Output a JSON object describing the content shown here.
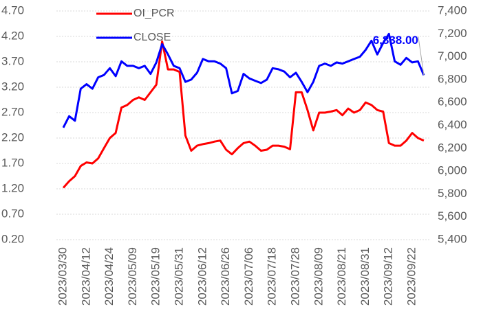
{
  "chart_data": {
    "type": "line",
    "categories": [
      "2023/03/30",
      null,
      null,
      null,
      "2023/04/12",
      null,
      null,
      null,
      "2023/04/24",
      null,
      null,
      null,
      "2023/05/09",
      null,
      null,
      null,
      "2023/05/19",
      null,
      null,
      null,
      "2023/05/31",
      null,
      null,
      null,
      "2023/06/12",
      null,
      null,
      null,
      "2023/06/26",
      null,
      null,
      null,
      "2023/07/06",
      null,
      null,
      null,
      "2023/07/18",
      null,
      null,
      null,
      "2023/07/28",
      null,
      null,
      null,
      "2023/08/09",
      null,
      null,
      null,
      "2023/08/21",
      null,
      null,
      null,
      "2023/08/31",
      null,
      null,
      null,
      "2023/09/12",
      null,
      null,
      null,
      "2023/09/22",
      null,
      null
    ],
    "series": [
      {
        "name": "OI_PCR",
        "color": "#ff0000",
        "axis": "y",
        "values": [
          1.22,
          1.35,
          1.45,
          1.65,
          1.72,
          1.7,
          1.8,
          2.0,
          2.2,
          2.3,
          2.8,
          2.85,
          2.95,
          3.0,
          2.95,
          3.1,
          3.25,
          4.1,
          3.55,
          3.55,
          3.5,
          2.25,
          1.95,
          2.05,
          2.08,
          2.1,
          2.13,
          2.15,
          1.97,
          1.88,
          2.0,
          2.1,
          2.13,
          2.05,
          1.95,
          1.97,
          2.05,
          2.05,
          2.03,
          1.98,
          3.1,
          3.1,
          2.75,
          2.35,
          2.7,
          2.7,
          2.72,
          2.75,
          2.65,
          2.78,
          2.7,
          2.75,
          2.9,
          2.85,
          2.75,
          2.72,
          2.1,
          2.05,
          2.05,
          2.15,
          2.3,
          2.2,
          2.15
        ]
      },
      {
        "name": "CLOSE",
        "color": "#0000ff",
        "axis": "y2",
        "values": [
          6380,
          6480,
          6440,
          6720,
          6760,
          6720,
          6820,
          6840,
          6900,
          6830,
          6960,
          6920,
          6920,
          6900,
          6920,
          6850,
          6950,
          7110,
          7020,
          6920,
          6900,
          6780,
          6800,
          6860,
          6980,
          6960,
          6960,
          6940,
          6900,
          6680,
          6700,
          6850,
          6810,
          6790,
          6770,
          6800,
          6900,
          6890,
          6870,
          6820,
          6860,
          6780,
          6690,
          6780,
          6920,
          6940,
          6920,
          6950,
          6940,
          6960,
          6980,
          7000,
          7060,
          7140,
          7020,
          7120,
          7200,
          6960,
          6930,
          6990,
          6950,
          6960,
          6838
        ],
        "value_labels": [
          null,
          null,
          null,
          null,
          null,
          null,
          null,
          null,
          null,
          null,
          null,
          null,
          null,
          null,
          null,
          null,
          null,
          null,
          null,
          null,
          null,
          null,
          null,
          null,
          null,
          null,
          null,
          null,
          null,
          null,
          null,
          null,
          null,
          null,
          null,
          null,
          null,
          null,
          null,
          null,
          null,
          null,
          null,
          null,
          null,
          null,
          null,
          null,
          null,
          null,
          null,
          null,
          null,
          null,
          null,
          null,
          null,
          null,
          null,
          null,
          null,
          null,
          "6,838.00"
        ]
      }
    ],
    "ylim": [
      0.2,
      4.7
    ],
    "yticks": [
      {
        "value": 0.2,
        "label": "0.20"
      },
      {
        "value": 0.7,
        "label": "0.70"
      },
      {
        "value": 1.2,
        "label": "1.20"
      },
      {
        "value": 1.7,
        "label": "1.70"
      },
      {
        "value": 2.2,
        "label": "2.20"
      },
      {
        "value": 2.7,
        "label": "2.70"
      },
      {
        "value": 3.2,
        "label": "3.20"
      },
      {
        "value": 3.7,
        "label": "3.70"
      },
      {
        "value": 4.2,
        "label": "4.20"
      },
      {
        "value": 4.7,
        "label": "4.70"
      }
    ],
    "y2lim": [
      5400,
      7400
    ],
    "y2ticks": [
      {
        "value": 5400,
        "label": "5,400"
      },
      {
        "value": 5600,
        "label": "5,600"
      },
      {
        "value": 5800,
        "label": "5,800"
      },
      {
        "value": 6000,
        "label": "6,000"
      },
      {
        "value": 6200,
        "label": "6,200"
      },
      {
        "value": 6400,
        "label": "6,400"
      },
      {
        "value": 6600,
        "label": "6,600"
      },
      {
        "value": 6800,
        "label": "6,800"
      },
      {
        "value": 7000,
        "label": "7,000"
      },
      {
        "value": 7200,
        "label": "7,200"
      },
      {
        "value": 7400,
        "label": "7,400"
      }
    ],
    "grid": true
  }
}
